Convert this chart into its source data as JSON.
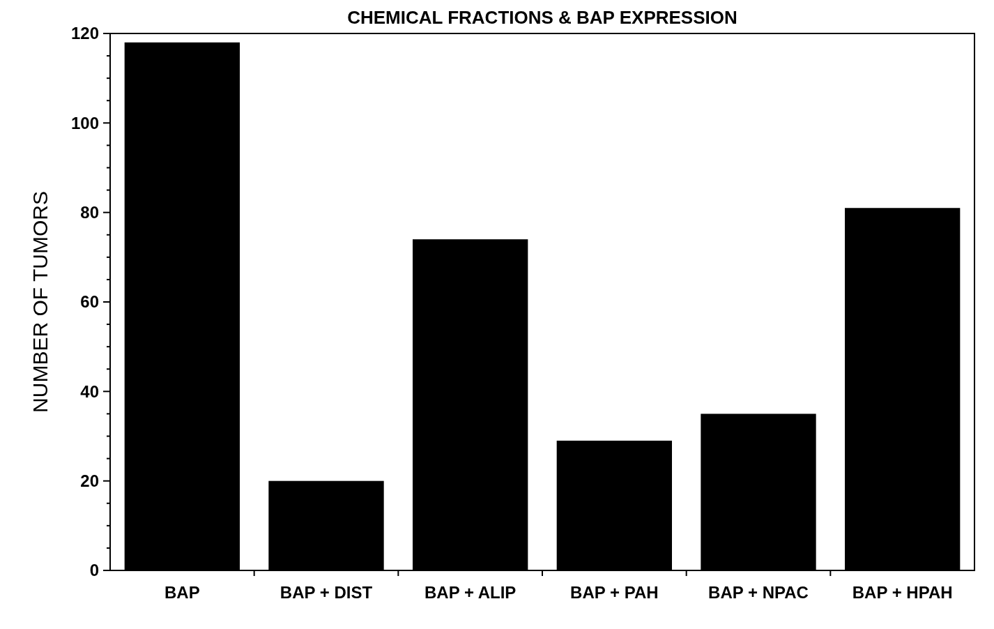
{
  "chart_data": {
    "type": "bar",
    "title": "CHEMICAL FRACTIONS & BAP EXPRESSION",
    "ylabel": "NUMBER OF TUMORS",
    "categories": [
      "BAP",
      "BAP + DIST",
      "BAP + ALIP",
      "BAP + PAH",
      "BAP + NPAC",
      "BAP + HPAH"
    ],
    "values": [
      118,
      20,
      74,
      29,
      35,
      81
    ],
    "color": "#000000",
    "ylim": [
      0,
      120
    ],
    "yticks": [
      0,
      20,
      40,
      60,
      80,
      100,
      120
    ],
    "grid": false
  }
}
